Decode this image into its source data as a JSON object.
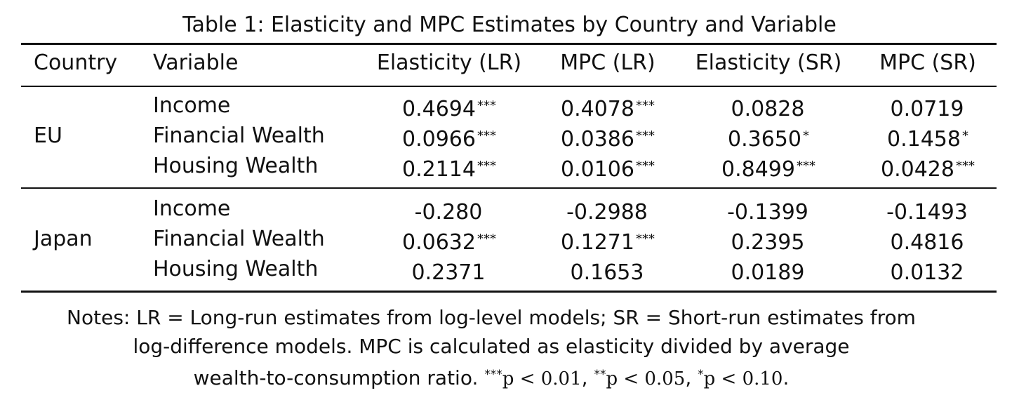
{
  "caption": "Table 1: Elasticity and MPC Estimates by Country and Variable",
  "headers": {
    "country": "Country",
    "variable": "Variable",
    "elasticity_lr": "Elasticity (LR)",
    "mpc_lr": "MPC (LR)",
    "elasticity_sr": "Elasticity (SR)",
    "mpc_sr": "MPC (SR)"
  },
  "groups": [
    {
      "country": "EU",
      "rows": [
        {
          "variable": "Income",
          "el_lr": "0.4694",
          "el_lr_s": "***",
          "mpc_lr": "0.4078",
          "mpc_lr_s": "***",
          "el_sr": "0.0828",
          "el_sr_s": "",
          "mpc_sr": "0.0719",
          "mpc_sr_s": ""
        },
        {
          "variable": "Financial Wealth",
          "el_lr": "0.0966",
          "el_lr_s": "***",
          "mpc_lr": "0.0386",
          "mpc_lr_s": "***",
          "el_sr": "0.3650",
          "el_sr_s": "*",
          "mpc_sr": "0.1458",
          "mpc_sr_s": "*"
        },
        {
          "variable": "Housing Wealth",
          "el_lr": "0.2114",
          "el_lr_s": "***",
          "mpc_lr": "0.0106",
          "mpc_lr_s": "***",
          "el_sr": "0.8499",
          "el_sr_s": "***",
          "mpc_sr": "0.0428",
          "mpc_sr_s": "***"
        }
      ]
    },
    {
      "country": "Japan",
      "rows": [
        {
          "variable": "Income",
          "el_lr": "-0.280",
          "el_lr_s": "",
          "mpc_lr": "-0.2988",
          "mpc_lr_s": "",
          "el_sr": "-0.1399",
          "el_sr_s": "",
          "mpc_sr": "-0.1493",
          "mpc_sr_s": ""
        },
        {
          "variable": "Financial Wealth",
          "el_lr": "0.0632",
          "el_lr_s": "***",
          "mpc_lr": "0.1271",
          "mpc_lr_s": "***",
          "el_sr": "0.2395",
          "el_sr_s": "",
          "mpc_sr": "0.4816",
          "mpc_sr_s": ""
        },
        {
          "variable": "Housing Wealth",
          "el_lr": "0.2371",
          "el_lr_s": "",
          "mpc_lr": "0.1653",
          "mpc_lr_s": "",
          "el_sr": "0.0189",
          "el_sr_s": "",
          "mpc_sr": "0.0132",
          "mpc_sr_s": ""
        }
      ]
    }
  ],
  "notes": {
    "line1": "Notes: LR = Long-run estimates from log-level models; SR = Short-run estimates from",
    "line2": "log-difference models. MPC is calculated as elasticity divided by average",
    "line3_text": "wealth-to-consumption ratio.",
    "sig1_stars": "***",
    "sig1": "p < 0.01",
    "sig2_stars": "**",
    "sig2": "p < 0.05",
    "sig3_stars": "*",
    "sig3": "p < 0.10"
  }
}
